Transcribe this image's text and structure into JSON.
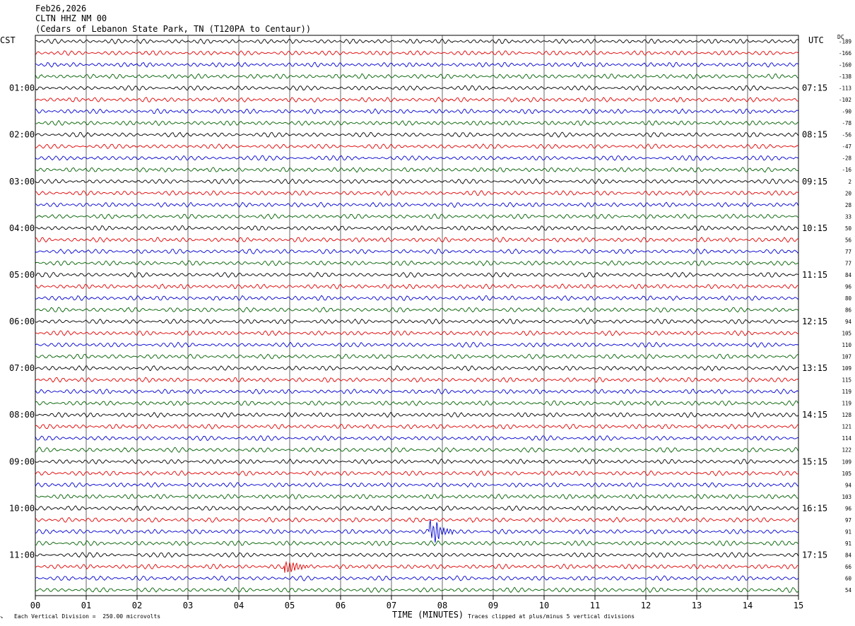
{
  "header": {
    "date": "Feb26,2026",
    "station": "CLTN HHZ NM 00",
    "location": "(Cedars of Lebanon State Park, TN (T120PA to Centaur))"
  },
  "corners": {
    "left_tz": "CST",
    "right_tz": "UTC",
    "dc_label": "DC"
  },
  "footer": {
    "scale_note": "Each Vertical Division =  250.00 microvolts",
    "clip_note": "Traces clipped at plus/minus 5 vertical divisions",
    "x_title": "TIME (MINUTES)"
  },
  "colors": {
    "trace_cycle": [
      "#000000",
      "#e00000",
      "#0000d0",
      "#006000"
    ],
    "grid": "#000000"
  },
  "chart_data": {
    "type": "line",
    "xlabel": "TIME (MINUTES)",
    "xlim": [
      0,
      15
    ],
    "x_ticks": [
      "00",
      "01",
      "02",
      "03",
      "04",
      "05",
      "06",
      "07",
      "08",
      "09",
      "10",
      "11",
      "12",
      "13",
      "14",
      "15"
    ],
    "grid": true,
    "left_time_labels": [
      "01:00",
      "02:00",
      "03:00",
      "04:00",
      "05:00",
      "06:00",
      "07:00",
      "08:00",
      "09:00",
      "10:00",
      "11:00"
    ],
    "right_time_labels": [
      "07:15",
      "08:15",
      "09:15",
      "10:15",
      "11:15",
      "12:15",
      "13:15",
      "14:15",
      "15:15",
      "16:15",
      "17:15"
    ],
    "dc_offsets": [
      "-189",
      "-166",
      "-160",
      "-138",
      "-113",
      "-102",
      "-90",
      "-78",
      "-56",
      "-47",
      "-28",
      "-16",
      "2",
      "20",
      "28",
      "33",
      "50",
      "56",
      "77",
      "77",
      "84",
      "96",
      "80",
      "86",
      "94",
      "105",
      "110",
      "107",
      "109",
      "115",
      "119",
      "119",
      "128",
      "121",
      "114",
      "122",
      "109",
      "105",
      "94",
      "103",
      "96",
      "97",
      "91",
      "91",
      "84",
      "66",
      "60",
      "54"
    ],
    "events": [
      {
        "trace": 42,
        "minute": 7.8,
        "label": ""
      },
      {
        "trace": 45,
        "minute": 4.95,
        "label": ""
      }
    ]
  }
}
